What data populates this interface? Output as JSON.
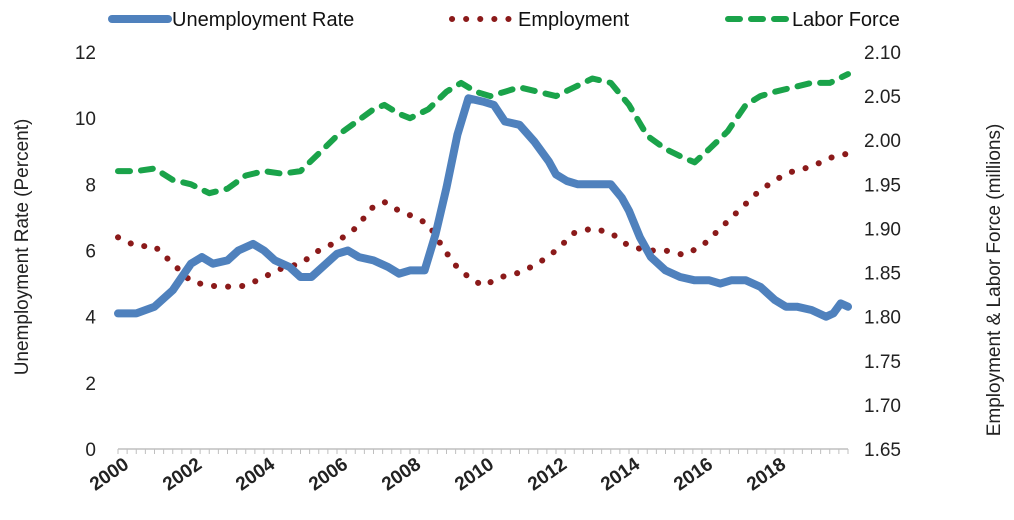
{
  "chart_data": {
    "type": "line",
    "title": "",
    "xlabel": "",
    "ylabel_left": "Unemployment Rate (Percent)",
    "ylabel_right": "Employment & Labor Force (millions)",
    "xlim": [
      2000,
      2020
    ],
    "ylim_left": [
      0,
      12
    ],
    "ylim_right": [
      1.65,
      2.1
    ],
    "x_ticks": [
      "2000",
      "2002",
      "2004",
      "2006",
      "2008",
      "2010",
      "2012",
      "2014",
      "2016",
      "2018"
    ],
    "y_left_ticks": [
      "0",
      "2",
      "4",
      "6",
      "8",
      "10",
      "12"
    ],
    "y_right_ticks": [
      "1.65",
      "1.70",
      "1.75",
      "1.80",
      "1.85",
      "1.90",
      "1.95",
      "2.00",
      "2.05",
      "2.10"
    ],
    "legend_position": "top",
    "grid": false,
    "series": [
      {
        "name": "Unemployment Rate",
        "axis": "left",
        "style": "solid",
        "color": "#4f81bd",
        "points": [
          [
            2000.0,
            4.1
          ],
          [
            2000.5,
            4.1
          ],
          [
            2001.0,
            4.3
          ],
          [
            2001.5,
            4.8
          ],
          [
            2002.0,
            5.6
          ],
          [
            2002.3,
            5.8
          ],
          [
            2002.6,
            5.6
          ],
          [
            2003.0,
            5.7
          ],
          [
            2003.3,
            6.0
          ],
          [
            2003.7,
            6.2
          ],
          [
            2004.0,
            6.0
          ],
          [
            2004.3,
            5.7
          ],
          [
            2004.7,
            5.5
          ],
          [
            2005.0,
            5.2
          ],
          [
            2005.3,
            5.2
          ],
          [
            2005.7,
            5.6
          ],
          [
            2006.0,
            5.9
          ],
          [
            2006.3,
            6.0
          ],
          [
            2006.6,
            5.8
          ],
          [
            2007.0,
            5.7
          ],
          [
            2007.4,
            5.5
          ],
          [
            2007.7,
            5.3
          ],
          [
            2008.0,
            5.4
          ],
          [
            2008.4,
            5.4
          ],
          [
            2008.7,
            6.5
          ],
          [
            2009.0,
            7.9
          ],
          [
            2009.3,
            9.5
          ],
          [
            2009.6,
            10.6
          ],
          [
            2010.0,
            10.5
          ],
          [
            2010.3,
            10.4
          ],
          [
            2010.6,
            9.9
          ],
          [
            2011.0,
            9.8
          ],
          [
            2011.4,
            9.3
          ],
          [
            2011.8,
            8.7
          ],
          [
            2012.0,
            8.3
          ],
          [
            2012.3,
            8.1
          ],
          [
            2012.6,
            8.0
          ],
          [
            2013.0,
            8.0
          ],
          [
            2013.5,
            8.0
          ],
          [
            2013.8,
            7.6
          ],
          [
            2014.0,
            7.2
          ],
          [
            2014.3,
            6.4
          ],
          [
            2014.6,
            5.8
          ],
          [
            2015.0,
            5.4
          ],
          [
            2015.4,
            5.2
          ],
          [
            2015.8,
            5.1
          ],
          [
            2016.2,
            5.1
          ],
          [
            2016.5,
            5.0
          ],
          [
            2016.8,
            5.1
          ],
          [
            2017.2,
            5.1
          ],
          [
            2017.6,
            4.9
          ],
          [
            2018.0,
            4.5
          ],
          [
            2018.3,
            4.3
          ],
          [
            2018.6,
            4.3
          ],
          [
            2019.0,
            4.2
          ],
          [
            2019.4,
            4.0
          ],
          [
            2019.6,
            4.1
          ],
          [
            2019.8,
            4.4
          ],
          [
            2020.0,
            4.3
          ]
        ]
      },
      {
        "name": "Employment",
        "axis": "right",
        "style": "dotted",
        "color": "#8b1a1a",
        "points": [
          [
            2000.0,
            1.89
          ],
          [
            2000.5,
            1.88
          ],
          [
            2001.0,
            1.88
          ],
          [
            2001.5,
            1.86
          ],
          [
            2002.0,
            1.84
          ],
          [
            2002.5,
            1.835
          ],
          [
            2003.0,
            1.834
          ],
          [
            2003.5,
            1.835
          ],
          [
            2004.0,
            1.845
          ],
          [
            2004.5,
            1.855
          ],
          [
            2005.0,
            1.86
          ],
          [
            2005.5,
            1.875
          ],
          [
            2006.0,
            1.885
          ],
          [
            2006.5,
            1.9
          ],
          [
            2007.0,
            1.925
          ],
          [
            2007.3,
            1.93
          ],
          [
            2007.7,
            1.92
          ],
          [
            2008.0,
            1.915
          ],
          [
            2008.5,
            1.905
          ],
          [
            2008.8,
            1.885
          ],
          [
            2009.2,
            1.86
          ],
          [
            2009.6,
            1.845
          ],
          [
            2010.0,
            1.835
          ],
          [
            2010.5,
            1.845
          ],
          [
            2011.0,
            1.85
          ],
          [
            2011.5,
            1.86
          ],
          [
            2012.0,
            1.875
          ],
          [
            2012.5,
            1.895
          ],
          [
            2013.0,
            1.9
          ],
          [
            2013.5,
            1.895
          ],
          [
            2014.0,
            1.88
          ],
          [
            2014.5,
            1.875
          ],
          [
            2015.0,
            1.875
          ],
          [
            2015.5,
            1.87
          ],
          [
            2016.0,
            1.88
          ],
          [
            2016.5,
            1.9
          ],
          [
            2017.0,
            1.92
          ],
          [
            2017.5,
            1.94
          ],
          [
            2018.0,
            1.955
          ],
          [
            2018.5,
            1.965
          ],
          [
            2019.0,
            1.97
          ],
          [
            2019.5,
            1.98
          ],
          [
            2020.0,
            1.985
          ]
        ]
      },
      {
        "name": "Labor Force",
        "axis": "right",
        "style": "dashed",
        "color": "#1aa34a",
        "points": [
          [
            2000.0,
            1.965
          ],
          [
            2000.5,
            1.965
          ],
          [
            2001.0,
            1.968
          ],
          [
            2001.5,
            1.955
          ],
          [
            2002.0,
            1.95
          ],
          [
            2002.5,
            1.94
          ],
          [
            2003.0,
            1.945
          ],
          [
            2003.5,
            1.96
          ],
          [
            2004.0,
            1.965
          ],
          [
            2004.5,
            1.962
          ],
          [
            2005.0,
            1.965
          ],
          [
            2005.5,
            1.985
          ],
          [
            2006.0,
            2.005
          ],
          [
            2006.5,
            2.02
          ],
          [
            2007.0,
            2.035
          ],
          [
            2007.3,
            2.04
          ],
          [
            2007.7,
            2.03
          ],
          [
            2008.0,
            2.025
          ],
          [
            2008.5,
            2.035
          ],
          [
            2009.0,
            2.055
          ],
          [
            2009.4,
            2.065
          ],
          [
            2009.8,
            2.055
          ],
          [
            2010.2,
            2.05
          ],
          [
            2010.6,
            2.055
          ],
          [
            2011.0,
            2.06
          ],
          [
            2011.5,
            2.055
          ],
          [
            2012.0,
            2.05
          ],
          [
            2012.5,
            2.06
          ],
          [
            2013.0,
            2.07
          ],
          [
            2013.5,
            2.065
          ],
          [
            2014.0,
            2.04
          ],
          [
            2014.5,
            2.005
          ],
          [
            2015.0,
            1.99
          ],
          [
            2015.5,
            1.98
          ],
          [
            2015.8,
            1.975
          ],
          [
            2016.2,
            1.99
          ],
          [
            2016.7,
            2.01
          ],
          [
            2017.2,
            2.04
          ],
          [
            2017.6,
            2.05
          ],
          [
            2018.0,
            2.055
          ],
          [
            2018.5,
            2.06
          ],
          [
            2019.0,
            2.065
          ],
          [
            2019.5,
            2.065
          ],
          [
            2020.0,
            2.075
          ]
        ]
      }
    ]
  }
}
